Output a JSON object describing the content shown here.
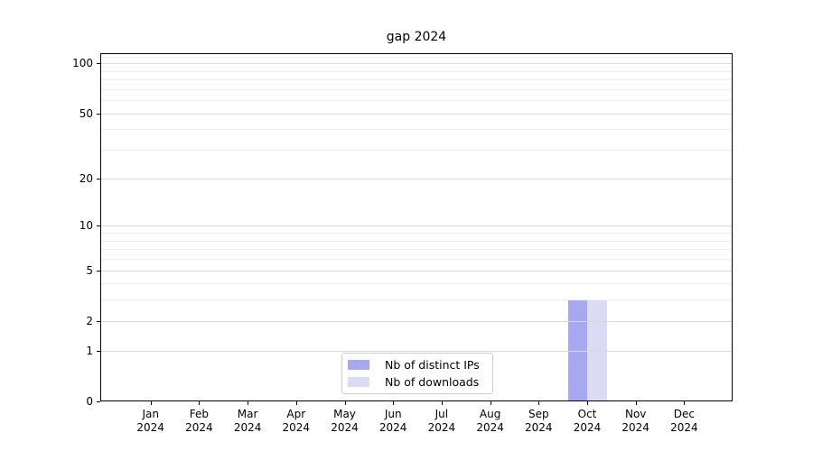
{
  "chart_data": {
    "type": "bar",
    "title": "gap 2024",
    "categories": [
      "Jan",
      "Feb",
      "Mar",
      "Apr",
      "May",
      "Jun",
      "Jul",
      "Aug",
      "Sep",
      "Oct",
      "Nov",
      "Dec"
    ],
    "category_year": "2024",
    "series": [
      {
        "name": "Nb of distinct IPs",
        "color": "#a8a8f0",
        "values": [
          0,
          0,
          0,
          0,
          0,
          0,
          0,
          0,
          0,
          3,
          0,
          0
        ]
      },
      {
        "name": "Nb of downloads",
        "color": "#dbdbf6",
        "values": [
          0,
          0,
          0,
          0,
          0,
          0,
          0,
          0,
          0,
          3,
          0,
          0
        ]
      }
    ],
    "yscale": "log1p",
    "ylim": [
      0,
      115
    ],
    "yticks": [
      0,
      1,
      2,
      5,
      10,
      20,
      50,
      100
    ],
    "minor_gridlines": [
      3,
      4,
      6,
      7,
      8,
      9,
      30,
      40,
      60,
      70,
      80,
      90,
      110
    ],
    "grid": "horizontal",
    "legend_position": "lower center"
  },
  "colors": {
    "background": "#ffffff",
    "axis": "#000000",
    "major_grid": "#d9d9d9",
    "minor_grid": "#efefef",
    "legend_border": "#cccccc",
    "text": "#000000"
  }
}
